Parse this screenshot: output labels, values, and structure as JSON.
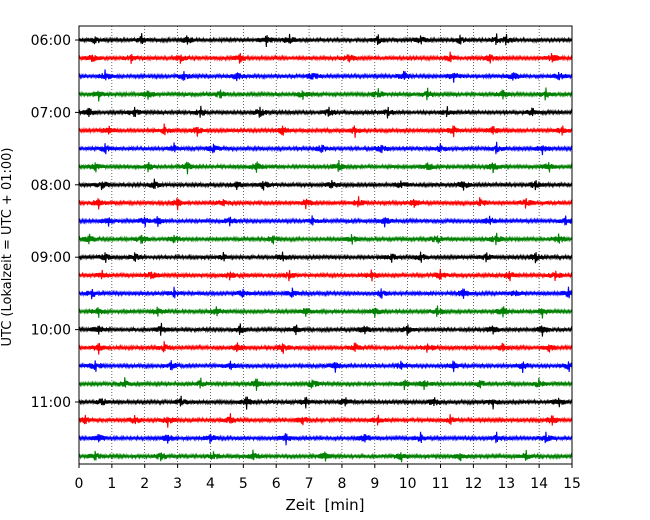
{
  "chart_data": {
    "type": "helicorder",
    "xlabel": "Zeit  [min]",
    "ylabel": "UTC (Lokalzeit = UTC + 01:00)",
    "xlim": [
      0,
      15
    ],
    "x_ticks": [
      "0",
      "1",
      "2",
      "3",
      "4",
      "5",
      "6",
      "7",
      "8",
      "9",
      "10",
      "11",
      "12",
      "13",
      "14",
      "15"
    ],
    "y_ticks": [
      "06:00",
      "07:00",
      "08:00",
      "09:00",
      "10:00",
      "11:00"
    ],
    "trace_interval_min": 15,
    "start_time": "06:00",
    "trace_colors": [
      "#000000",
      "#ff0000",
      "#0000ff",
      "#008000"
    ],
    "grid": "vertical dotted",
    "traces": [
      {
        "start": "06:00",
        "color": "#000000",
        "events_min": [
          0.5,
          1.9,
          3.3,
          5.7,
          6.4,
          9.1,
          10.4,
          11.6,
          12.7,
          13.0
        ]
      },
      {
        "start": "06:15",
        "color": "#ff0000",
        "events_min": [
          0.4,
          1.6,
          3.1,
          4.9,
          8.2,
          11.3,
          12.5,
          14.4
        ]
      },
      {
        "start": "06:30",
        "color": "#0000ff",
        "events_min": [
          0.8,
          3.2,
          4.8,
          7.1,
          9.9,
          11.4,
          13.2,
          14.6
        ]
      },
      {
        "start": "06:45",
        "color": "#008000",
        "events_min": [
          0.6,
          2.1,
          4.3,
          6.8,
          9.1,
          10.6,
          12.9,
          14.2
        ]
      },
      {
        "start": "07:00",
        "color": "#000000",
        "events_min": [
          0.3,
          1.7,
          3.7,
          5.5,
          7.6,
          9.4,
          11.2,
          13.8
        ]
      },
      {
        "start": "07:15",
        "color": "#ff0000",
        "events_min": [
          0.9,
          2.6,
          3.6,
          6.2,
          8.4,
          11.4,
          12.6,
          14.7
        ]
      },
      {
        "start": "07:30",
        "color": "#0000ff",
        "events_min": [
          0.8,
          2.9,
          4.1,
          7.4,
          9.2,
          11.0,
          12.7,
          14.1
        ]
      },
      {
        "start": "07:45",
        "color": "#008000",
        "events_min": [
          0.5,
          2.1,
          3.3,
          5.4,
          7.9,
          10.6,
          12.6,
          14.3
        ]
      },
      {
        "start": "08:00",
        "color": "#000000",
        "events_min": [
          0.7,
          2.3,
          4.8,
          5.6,
          7.7,
          9.8,
          11.7,
          13.9
        ]
      },
      {
        "start": "08:15",
        "color": "#ff0000",
        "events_min": [
          0.6,
          3.0,
          4.4,
          6.9,
          8.5,
          10.2,
          12.2,
          13.6
        ]
      },
      {
        "start": "08:30",
        "color": "#0000ff",
        "events_min": [
          0.9,
          2.0,
          2.4,
          4.6,
          7.1,
          9.3,
          12.5,
          14.8
        ]
      },
      {
        "start": "08:45",
        "color": "#008000",
        "events_min": [
          0.3,
          1.9,
          2.9,
          5.9,
          8.3,
          10.9,
          12.7,
          14.6
        ]
      },
      {
        "start": "09:00",
        "color": "#000000",
        "events_min": [
          0.8,
          1.7,
          4.4,
          6.2,
          9.5,
          10.4,
          12.4,
          13.9
        ]
      },
      {
        "start": "09:15",
        "color": "#ff0000",
        "events_min": [
          0.7,
          2.2,
          4.6,
          6.4,
          8.9,
          11.0,
          13.1,
          14.5
        ]
      },
      {
        "start": "09:30",
        "color": "#0000ff",
        "events_min": [
          0.4,
          2.9,
          5.0,
          6.5,
          9.2,
          11.7,
          13.3,
          14.9
        ]
      },
      {
        "start": "09:45",
        "color": "#008000",
        "events_min": [
          0.6,
          2.4,
          4.2,
          6.9,
          9.0,
          10.9,
          12.9,
          14.1
        ]
      },
      {
        "start": "10:00",
        "color": "#000000",
        "events_min": [
          0.6,
          2.5,
          4.9,
          6.6,
          8.7,
          10.0,
          12.6,
          14.1
        ]
      },
      {
        "start": "10:15",
        "color": "#ff0000",
        "events_min": [
          0.6,
          2.6,
          4.8,
          6.2,
          8.4,
          10.6,
          12.9,
          14.3
        ]
      },
      {
        "start": "10:30",
        "color": "#0000ff",
        "events_min": [
          0.5,
          2.8,
          4.6,
          7.8,
          9.8,
          11.4,
          13.5,
          14.9
        ]
      },
      {
        "start": "10:45",
        "color": "#008000",
        "events_min": [
          1.4,
          3.7,
          5.4,
          7.1,
          9.9,
          10.5,
          12.2,
          14.0
        ]
      },
      {
        "start": "11:00",
        "color": "#000000",
        "events_min": [
          0.7,
          3.1,
          5.1,
          6.9,
          8.1,
          10.8,
          12.6,
          14.6
        ]
      },
      {
        "start": "11:15",
        "color": "#ff0000",
        "events_min": [
          0.2,
          1.7,
          2.7,
          4.6,
          6.8,
          9.1,
          11.3,
          14.4
        ]
      },
      {
        "start": "11:30",
        "color": "#0000ff",
        "events_min": [
          0.6,
          2.7,
          4.0,
          6.3,
          8.7,
          10.4,
          12.7,
          14.2
        ]
      },
      {
        "start": "11:45",
        "color": "#008000",
        "events_min": [
          0.5,
          2.5,
          4.1,
          5.3,
          7.5,
          9.8,
          11.6,
          13.6
        ]
      }
    ]
  }
}
